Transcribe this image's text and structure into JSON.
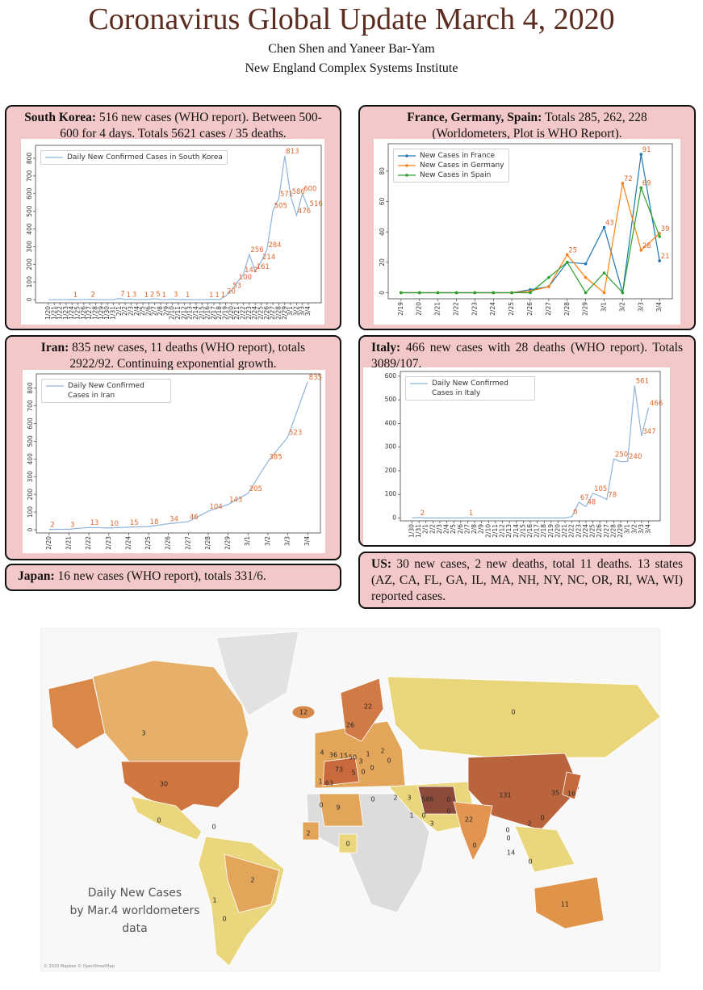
{
  "header": {
    "title": "Coronavirus Global Update March 4, 2020",
    "authors": "Chen Shen and Yaneer Bar-Yam",
    "affiliation": "New England Complex Systems Institute"
  },
  "panels": {
    "south_korea": {
      "heading": "South Korea:",
      "text": "516 new cases (WHO report). Between 500-600 for 4 days. Totals 5621 cases / 35 deaths."
    },
    "europe": {
      "heading": "France, Germany, Spain:",
      "text": "Totals 285, 262, 228 (Worldometers, Plot is WHO Report)."
    },
    "iran": {
      "heading": "Iran:",
      "text": "835 new cases, 11 deaths (WHO report), totals 2922/92. Continuing exponential growth."
    },
    "italy": {
      "heading": "Italy:",
      "text": "466 new cases with 28 deaths (WHO report). Totals 3089/107."
    },
    "japan": {
      "heading": "Japan:",
      "text": "16 new cases (WHO report), totals 331/6."
    },
    "us": {
      "heading": "US:",
      "text": "30 new cases, 2 new deaths, total 11 deaths. 13 states (AZ, CA, FL, GA, IL, MA, NH, NY, NC, OR, RI, WA, WI) reported cases."
    }
  },
  "chart_data": [
    {
      "type": "line",
      "legend": "upper left",
      "ytick_rotation": 90,
      "label_color": "#e0672e",
      "categories": [
        "1/20",
        "1/21",
        "1/22",
        "1/23",
        "1/24",
        "1/25",
        "1/26",
        "1/27",
        "1/28",
        "1/29",
        "1/30",
        "1/31",
        "2/1",
        "2/2",
        "2/3",
        "2/4",
        "2/5",
        "2/6",
        "2/7",
        "2/8",
        "2/9",
        "2/10",
        "2/11",
        "2/12",
        "2/13",
        "2/14",
        "2/15",
        "2/16",
        "2/17",
        "2/18",
        "2/19",
        "2/20",
        "2/21",
        "2/22",
        "2/23",
        "2/24",
        "2/25",
        "2/26",
        "2/27",
        "2/28",
        "2/29",
        "3/1",
        "3/2",
        "3/3",
        "3/4"
      ],
      "series": [
        {
          "name": "Daily New Confirmed Cases in South Korea",
          "color": "#8fb3d9",
          "values": [
            0,
            0,
            0,
            0,
            1,
            0,
            0,
            2,
            0,
            0,
            0,
            0,
            7,
            1,
            3,
            0,
            1,
            2,
            5,
            1,
            0,
            3,
            0,
            1,
            0,
            0,
            0,
            1,
            1,
            1,
            20,
            53,
            100,
            142,
            256,
            161,
            214,
            284,
            505,
            571,
            813,
            586,
            476,
            600,
            516
          ],
          "value_labels": [
            null,
            null,
            null,
            null,
            "1",
            null,
            null,
            "2",
            null,
            null,
            null,
            null,
            "7",
            "1",
            "3",
            null,
            "1",
            "2",
            "5",
            "1",
            null,
            "3",
            null,
            "1",
            null,
            null,
            null,
            "1",
            "1",
            "1",
            "20",
            "53",
            "100",
            "142",
            "256",
            "161",
            "214",
            "284",
            "505",
            "571",
            "813",
            "586",
            "476",
            "600",
            "516"
          ]
        }
      ],
      "ylim": [
        -18,
        873
      ],
      "yticks": [
        0,
        100,
        200,
        300,
        400,
        500,
        600,
        700,
        800
      ]
    },
    {
      "type": "line",
      "legend": "upper left",
      "ytick_rotation": 90,
      "label_color": "#e0672e",
      "markers": true,
      "categories": [
        "2/19",
        "2/20",
        "2/21",
        "2/22",
        "2/23",
        "2/24",
        "2/25",
        "2/26",
        "2/27",
        "2/28",
        "2/29",
        "3/1",
        "3/2",
        "3/3",
        "3/4"
      ],
      "series": [
        {
          "name": "New Cases in France",
          "color": "#1f77b4",
          "values": [
            0,
            0,
            0,
            0,
            0,
            0,
            0,
            2,
            4,
            20,
            19,
            43,
            0,
            91,
            21
          ],
          "value_labels": [
            null,
            null,
            null,
            null,
            null,
            null,
            null,
            null,
            null,
            null,
            null,
            "43",
            null,
            "91",
            "21"
          ]
        },
        {
          "name": "New Cases in Germany",
          "color": "#ff7f0e",
          "values": [
            0,
            0,
            0,
            0,
            0,
            0,
            0,
            1,
            4,
            25,
            10,
            0,
            72,
            28,
            39
          ],
          "value_labels": [
            null,
            null,
            null,
            null,
            null,
            null,
            null,
            null,
            null,
            "25",
            null,
            null,
            "72",
            "28",
            "39"
          ]
        },
        {
          "name": "New Cases in Spain",
          "color": "#2ca02c",
          "values": [
            0,
            0,
            0,
            0,
            0,
            0,
            0,
            0,
            10,
            20,
            0,
            13,
            0,
            69,
            37
          ],
          "value_labels": [
            null,
            null,
            null,
            null,
            null,
            null,
            null,
            null,
            null,
            null,
            null,
            null,
            null,
            "69",
            null
          ]
        }
      ],
      "ylim": [
        -4,
        98
      ],
      "yticks": [
        0,
        20,
        40,
        60,
        80
      ]
    },
    {
      "type": "line",
      "legend": "upper left",
      "ytick_rotation": 90,
      "label_color": "#e0672e",
      "categories": [
        "2/20",
        "2/21",
        "2/22",
        "2/23",
        "2/24",
        "2/25",
        "2/26",
        "2/27",
        "2/28",
        "2/29",
        "3/1",
        "3/2",
        "3/3",
        "3/4"
      ],
      "series": [
        {
          "name": "Daily New Confirmed Cases in Iran",
          "color": "#8fb3d9",
          "values": [
            2,
            3,
            13,
            10,
            15,
            18,
            34,
            46,
            104,
            143,
            205,
            385,
            523,
            835
          ],
          "value_labels": [
            "2",
            "3",
            "13",
            "10",
            "15",
            "18",
            "34",
            "46",
            "104",
            "143",
            "205",
            "385",
            "523",
            "835"
          ]
        }
      ],
      "ylim": [
        -18,
        880
      ],
      "yticks": [
        0,
        100,
        200,
        300,
        400,
        500,
        600,
        700,
        800
      ]
    },
    {
      "type": "line",
      "legend": "upper left",
      "ytick_rotation": 0,
      "label_color": "#e0672e",
      "categories": [
        "1/30",
        "1/31",
        "2/1",
        "2/2",
        "2/3",
        "2/4",
        "2/5",
        "2/6",
        "2/7",
        "2/8",
        "2/9",
        "2/10",
        "2/11",
        "2/12",
        "2/13",
        "2/14",
        "2/15",
        "2/16",
        "2/17",
        "2/18",
        "2/19",
        "2/20",
        "2/21",
        "2/22",
        "2/23",
        "2/24",
        "2/25",
        "2/26",
        "2/27",
        "2/28",
        "2/29",
        "3/1",
        "3/2",
        "3/3",
        "3/4"
      ],
      "series": [
        {
          "name": "Daily New Confirmed Cases in Italy",
          "color": "#8fb3d9",
          "values": [
            0,
            2,
            0,
            0,
            0,
            0,
            0,
            0,
            1,
            0,
            0,
            0,
            0,
            0,
            0,
            0,
            0,
            0,
            0,
            0,
            0,
            0,
            0,
            6,
            67,
            48,
            105,
            93,
            78,
            250,
            238,
            240,
            561,
            347,
            466
          ],
          "value_labels": [
            null,
            "2",
            null,
            null,
            null,
            null,
            null,
            null,
            "1",
            null,
            null,
            null,
            null,
            null,
            null,
            null,
            null,
            null,
            null,
            null,
            null,
            null,
            null,
            "6",
            "67",
            "48",
            "105",
            null,
            "78",
            "250",
            null,
            "240",
            "561",
            "347",
            "466"
          ]
        }
      ],
      "ylim": [
        -12,
        620
      ],
      "yticks": [
        0,
        100,
        200,
        300,
        400,
        500,
        600
      ]
    }
  ],
  "map": {
    "labels": [
      "12",
      "3",
      "22",
      "26",
      "0",
      "4",
      "36",
      "15",
      "50",
      "1",
      "2",
      "0",
      "3",
      "73",
      "5",
      "0",
      "0",
      "63",
      "1",
      "30",
      "9",
      "0",
      "0",
      "2",
      "3",
      "586",
      "0",
      "0",
      "1",
      "0",
      "3",
      "131",
      "35",
      "16",
      "22",
      "0",
      "0",
      "0",
      "2",
      "0",
      "14",
      "0",
      "0",
      "0",
      "2",
      "0",
      "2",
      "1",
      "0",
      "11"
    ],
    "caption": [
      "Daily New Cases",
      "by Mar.4 worldometers",
      "data"
    ],
    "credit": "© 2020 Mapbox © OpenStreetMap"
  }
}
